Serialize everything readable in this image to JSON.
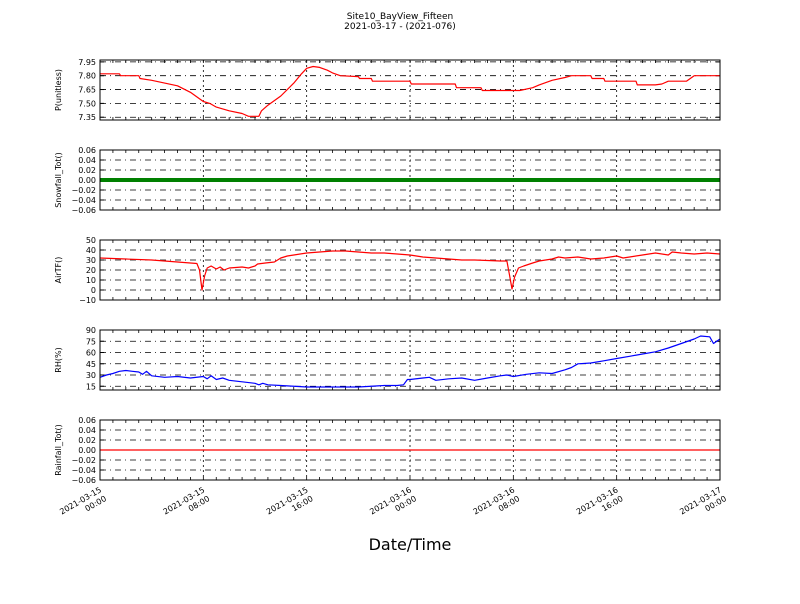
{
  "chart_data": {
    "type": "line",
    "title": "Site10_BayView_Fifteen",
    "subtitle": "2021-03-17 - (2021-076)",
    "xlabel": "Date/Time",
    "x_ticks": [
      {
        "line1": "2021-03-15",
        "line2": "00:00"
      },
      {
        "line1": "2021-03-15",
        "line2": "08:00"
      },
      {
        "line1": "2021-03-15",
        "line2": "16:00"
      },
      {
        "line1": "2021-03-16",
        "line2": "00:00"
      },
      {
        "line1": "2021-03-16",
        "line2": "08:00"
      },
      {
        "line1": "2021-03-16",
        "line2": "16:00"
      },
      {
        "line1": "2021-03-17",
        "line2": "00:00"
      }
    ],
    "xlim_hours": [
      0,
      48
    ],
    "panels": [
      {
        "ylabel": "P(unitless)",
        "ylim": [
          7.32,
          7.97
        ],
        "yticks": [
          "7.95",
          "7.80",
          "7.65",
          "7.50",
          "7.35"
        ],
        "ytick_values": [
          7.95,
          7.8,
          7.65,
          7.5,
          7.35
        ],
        "color": "#ff0000",
        "style": "line",
        "series": [
          [
            0,
            7.82
          ],
          [
            1.5,
            7.82
          ],
          [
            1.6,
            7.8
          ],
          [
            3,
            7.8
          ],
          [
            3.1,
            7.77
          ],
          [
            4,
            7.75
          ],
          [
            5,
            7.72
          ],
          [
            6,
            7.69
          ],
          [
            7,
            7.62
          ],
          [
            8,
            7.52
          ],
          [
            8.5,
            7.5
          ],
          [
            9,
            7.46
          ],
          [
            10,
            7.42
          ],
          [
            11,
            7.39
          ],
          [
            11.5,
            7.36
          ],
          [
            12.3,
            7.36
          ],
          [
            12.5,
            7.42
          ],
          [
            13,
            7.48
          ],
          [
            14,
            7.58
          ],
          [
            15,
            7.72
          ],
          [
            15.6,
            7.82
          ],
          [
            16,
            7.88
          ],
          [
            16.5,
            7.9
          ],
          [
            17,
            7.89
          ],
          [
            17.6,
            7.86
          ],
          [
            18,
            7.83
          ],
          [
            18.6,
            7.8
          ],
          [
            20,
            7.79
          ],
          [
            20.1,
            7.77
          ],
          [
            21,
            7.77
          ],
          [
            21.1,
            7.74
          ],
          [
            24,
            7.74
          ],
          [
            24.1,
            7.71
          ],
          [
            27.5,
            7.71
          ],
          [
            27.6,
            7.67
          ],
          [
            29.5,
            7.67
          ],
          [
            29.6,
            7.64
          ],
          [
            32.5,
            7.64
          ],
          [
            33.5,
            7.67
          ],
          [
            34,
            7.7
          ],
          [
            35,
            7.75
          ],
          [
            36,
            7.78
          ],
          [
            36.5,
            7.8
          ],
          [
            38,
            7.8
          ],
          [
            38.1,
            7.77
          ],
          [
            39,
            7.77
          ],
          [
            39.1,
            7.74
          ],
          [
            41.5,
            7.74
          ],
          [
            41.6,
            7.7
          ],
          [
            43,
            7.7
          ],
          [
            43.5,
            7.71
          ],
          [
            44,
            7.74
          ],
          [
            45.4,
            7.74
          ],
          [
            46,
            7.8
          ],
          [
            48,
            7.8
          ]
        ]
      },
      {
        "ylabel": "Snowfall_Tot()",
        "ylim": [
          -0.06,
          0.06
        ],
        "yticks": [
          "0.06",
          "0.04",
          "0.02",
          "0.00",
          "−0.02",
          "−0.04",
          "−0.06"
        ],
        "ytick_values": [
          0.06,
          0.04,
          0.02,
          0.0,
          -0.02,
          -0.04,
          -0.06
        ],
        "color": "#008000",
        "style": "thick",
        "series": [
          [
            0,
            0
          ],
          [
            48,
            0
          ]
        ]
      },
      {
        "ylabel": "AirTF()",
        "ylim": [
          -10,
          50
        ],
        "yticks": [
          "50",
          "40",
          "30",
          "20",
          "10",
          "0",
          "−10"
        ],
        "ytick_values": [
          50,
          40,
          30,
          20,
          10,
          0,
          -10
        ],
        "color": "#ff0000",
        "style": "line",
        "series": [
          [
            0,
            32
          ],
          [
            1,
            31.5
          ],
          [
            2,
            31
          ],
          [
            4,
            30
          ],
          [
            6,
            28
          ],
          [
            7,
            27
          ],
          [
            7.5,
            26.5
          ],
          [
            7.7,
            20
          ],
          [
            7.9,
            0
          ],
          [
            8.1,
            14
          ],
          [
            8.3,
            22
          ],
          [
            8.6,
            24
          ],
          [
            9,
            21
          ],
          [
            9.3,
            23
          ],
          [
            9.6,
            20
          ],
          [
            10,
            22
          ],
          [
            11,
            23
          ],
          [
            11.5,
            22
          ],
          [
            12,
            24
          ],
          [
            12.2,
            26
          ],
          [
            12.8,
            27
          ],
          [
            13.5,
            28
          ],
          [
            14,
            32
          ],
          [
            14.5,
            34
          ],
          [
            15,
            35
          ],
          [
            16,
            37
          ],
          [
            17,
            38
          ],
          [
            18,
            39
          ],
          [
            19,
            39
          ],
          [
            20,
            38
          ],
          [
            21,
            37
          ],
          [
            22,
            37
          ],
          [
            23,
            36
          ],
          [
            24,
            35
          ],
          [
            25,
            33
          ],
          [
            26,
            32
          ],
          [
            27,
            31
          ],
          [
            28,
            30
          ],
          [
            29,
            30
          ],
          [
            30,
            29.5
          ],
          [
            31,
            29
          ],
          [
            31.5,
            29
          ],
          [
            31.7,
            15
          ],
          [
            31.9,
            1
          ],
          [
            32.1,
            13
          ],
          [
            32.4,
            22
          ],
          [
            32.8,
            24
          ],
          [
            33.5,
            27
          ],
          [
            34,
            29
          ],
          [
            35,
            31
          ],
          [
            35.5,
            33
          ],
          [
            36,
            32
          ],
          [
            37,
            33
          ],
          [
            38,
            31
          ],
          [
            39,
            32
          ],
          [
            40,
            34
          ],
          [
            40.5,
            32
          ],
          [
            41,
            33
          ],
          [
            42,
            35
          ],
          [
            42.5,
            36
          ],
          [
            43,
            37
          ],
          [
            44,
            35
          ],
          [
            44.3,
            38
          ],
          [
            45,
            37
          ],
          [
            46,
            36
          ],
          [
            47,
            37
          ],
          [
            48,
            36
          ]
        ]
      },
      {
        "ylabel": "RH(%)",
        "ylim": [
          10,
          90
        ],
        "yticks": [
          "90",
          "75",
          "60",
          "45",
          "30",
          "15"
        ],
        "ytick_values": [
          90,
          75,
          60,
          45,
          30,
          15
        ],
        "color": "#0000ff",
        "style": "line",
        "series": [
          [
            0,
            27
          ],
          [
            0.5,
            30
          ],
          [
            1,
            32
          ],
          [
            1.5,
            35
          ],
          [
            2,
            36
          ],
          [
            2.5,
            35
          ],
          [
            3,
            34
          ],
          [
            3.3,
            31
          ],
          [
            3.6,
            35
          ],
          [
            4,
            29
          ],
          [
            5,
            27
          ],
          [
            6,
            28
          ],
          [
            7,
            26
          ],
          [
            8,
            28
          ],
          [
            8.3,
            25
          ],
          [
            8.6,
            29
          ],
          [
            9,
            24
          ],
          [
            9.5,
            26
          ],
          [
            10,
            23
          ],
          [
            11,
            21
          ],
          [
            12,
            19
          ],
          [
            12.3,
            17
          ],
          [
            12.6,
            19
          ],
          [
            13,
            17
          ],
          [
            14,
            16
          ],
          [
            16,
            14
          ],
          [
            18,
            14
          ],
          [
            20,
            14
          ],
          [
            22,
            16
          ],
          [
            23,
            16
          ],
          [
            23.5,
            17
          ],
          [
            23.8,
            24
          ],
          [
            24,
            24
          ],
          [
            25,
            26
          ],
          [
            25.5,
            27
          ],
          [
            26,
            23
          ],
          [
            27,
            25
          ],
          [
            28,
            26
          ],
          [
            29,
            23
          ],
          [
            30,
            26
          ],
          [
            31,
            29
          ],
          [
            31.5,
            30
          ],
          [
            32,
            28
          ],
          [
            33,
            31
          ],
          [
            34,
            33
          ],
          [
            35,
            32
          ],
          [
            36,
            37
          ],
          [
            36.5,
            40
          ],
          [
            37,
            45
          ],
          [
            38,
            46
          ],
          [
            39,
            49
          ],
          [
            40,
            52
          ],
          [
            41,
            55
          ],
          [
            42,
            58
          ],
          [
            43,
            61
          ],
          [
            44,
            66
          ],
          [
            45,
            72
          ],
          [
            46,
            78
          ],
          [
            46.5,
            82
          ],
          [
            47.2,
            81
          ],
          [
            47.5,
            72
          ],
          [
            48,
            78
          ]
        ]
      },
      {
        "ylabel": "Rainfall_Tot()",
        "ylim": [
          -0.06,
          0.06
        ],
        "yticks": [
          "0.06",
          "0.04",
          "0.02",
          "0.00",
          "−0.02",
          "−0.04",
          "−0.06"
        ],
        "ytick_values": [
          0.06,
          0.04,
          0.02,
          0.0,
          -0.02,
          -0.04,
          -0.06
        ],
        "color": "#ff0000",
        "style": "line",
        "series": [
          [
            0,
            0
          ],
          [
            48,
            0
          ]
        ]
      }
    ]
  }
}
